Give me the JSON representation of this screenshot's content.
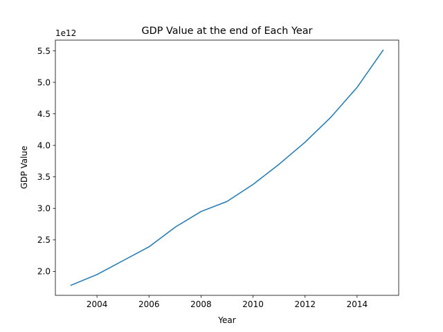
{
  "chart_data": {
    "type": "line",
    "title": "GDP Value at the end of Each Year",
    "xlabel": "Year",
    "ylabel": "GDP Value",
    "y_offset_label": "1e12",
    "y_scale_factor": 1000000000000.0,
    "xlim": [
      2002.4,
      2015.6
    ],
    "ylim": [
      1620000000000.0,
      5670000000000.0
    ],
    "grid": false,
    "legend": "none",
    "x_ticks": [
      2004,
      2006,
      2008,
      2010,
      2012,
      2014
    ],
    "x_tick_labels": [
      "2004",
      "2006",
      "2008",
      "2010",
      "2012",
      "2014"
    ],
    "y_ticks": [
      2000000000000.0,
      2500000000000.0,
      3000000000000.0,
      3500000000000.0,
      4000000000000.0,
      4500000000000.0,
      5000000000000.0,
      5500000000000.0
    ],
    "y_tick_labels": [
      "2.0",
      "2.5",
      "3.0",
      "3.5",
      "4.0",
      "4.5",
      "5.0",
      "5.5"
    ],
    "series": [
      {
        "color": "#1f77b4",
        "x": [
          2003,
          2004,
          2005,
          2006,
          2007,
          2008,
          2009,
          2010,
          2011,
          2012,
          2013,
          2014,
          2015
        ],
        "y": [
          1780000000000.0,
          1950000000000.0,
          2170000000000.0,
          2390000000000.0,
          2700000000000.0,
          2950000000000.0,
          3110000000000.0,
          3380000000000.0,
          3700000000000.0,
          4050000000000.0,
          4450000000000.0,
          4920000000000.0,
          5510000000000.0
        ]
      }
    ]
  }
}
